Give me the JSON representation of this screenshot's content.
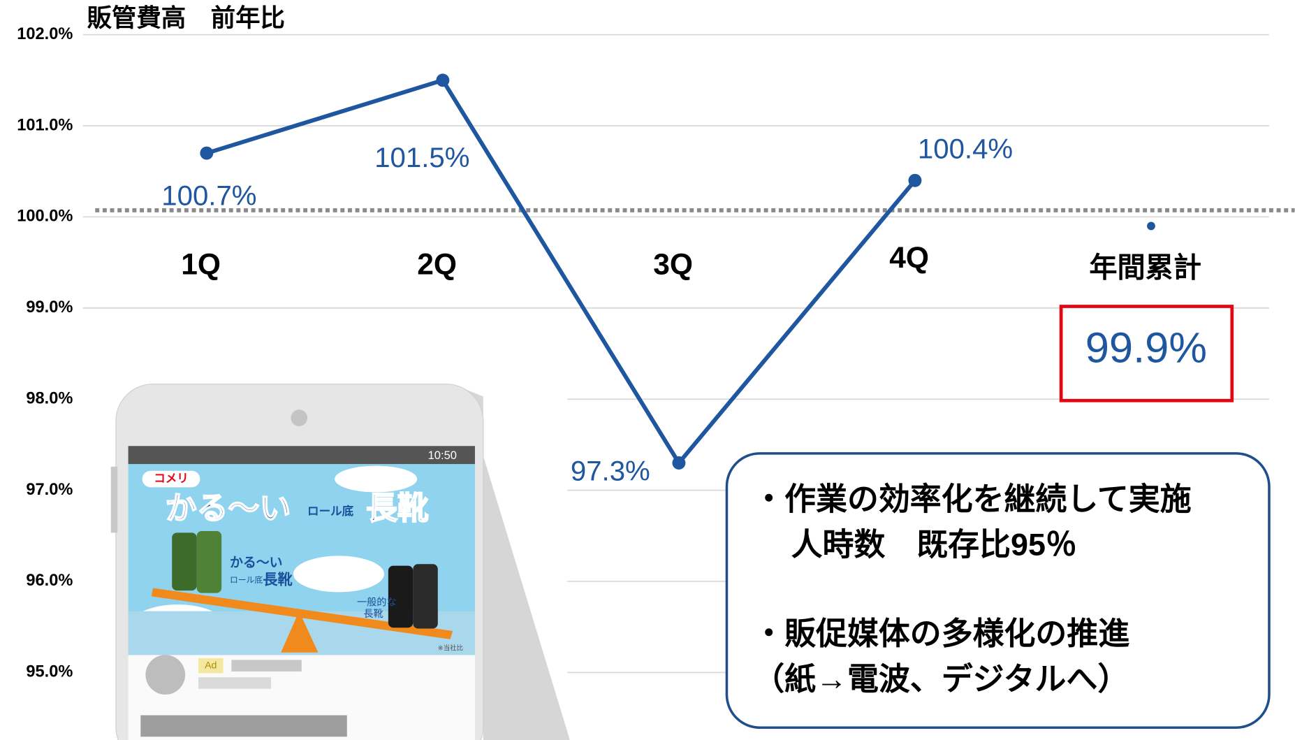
{
  "chart_data": {
    "type": "line",
    "title": "販管費高　前年比",
    "categories": [
      "1Q",
      "2Q",
      "3Q",
      "4Q",
      "年間累計"
    ],
    "series": [
      {
        "color": "#1f56a0",
        "values": [
          100.7,
          101.5,
          97.3,
          100.4,
          null
        ],
        "value_labels": [
          "100.7%",
          "101.5%",
          "97.3%",
          "100.4%",
          null
        ]
      }
    ],
    "total": {
      "value": 99.9,
      "value_label": "99.9%"
    },
    "reference_value": 100,
    "ylim": [
      94.25,
      102.0
    ],
    "yticks": [
      {
        "value": 95,
        "label": "95.0%"
      },
      {
        "value": 96,
        "label": "96.0%"
      },
      {
        "value": 97,
        "label": "97.0%"
      },
      {
        "value": 98,
        "label": "98.0%"
      },
      {
        "value": 99,
        "label": "99.0%"
      },
      {
        "value": 100,
        "label": "100.0%"
      },
      {
        "value": 101,
        "label": "101.0%"
      },
      {
        "value": 102,
        "label": "102.0%"
      }
    ],
    "grid": true
  },
  "callout": {
    "lines": [
      "・作業の効率化を継続して実施",
      "人時数　既存比95％",
      "・販促媒体の多様化の推進",
      "（紙→電波、デジタルへ）"
    ]
  },
  "ad": {
    "status_time": "10:50",
    "brand": "コメリ",
    "headline": [
      "かる〜い",
      "ロール底",
      "長靴"
    ],
    "light_label": [
      "かる〜い",
      "ロール底",
      "長靴"
    ],
    "regular_label": [
      "一般的な",
      "長靴"
    ],
    "note": "※当社比",
    "badge": "Ad"
  }
}
